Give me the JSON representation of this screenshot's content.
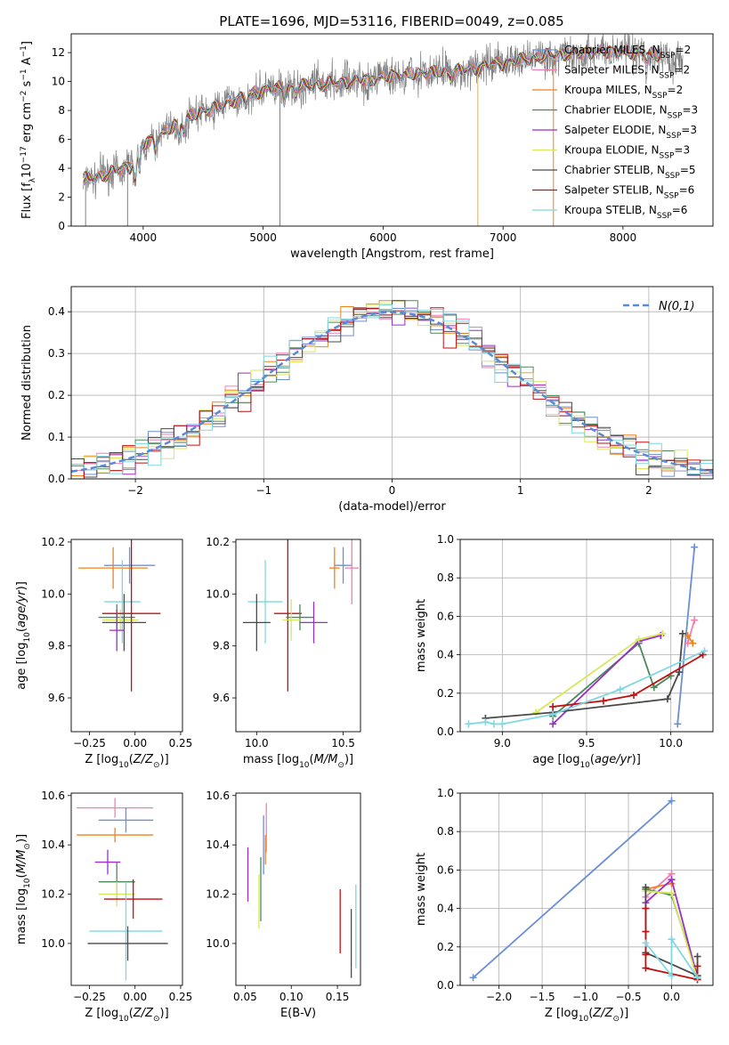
{
  "figure": {
    "title": "PLATE=1696, MJD=53116, FIBERID=0049, z=0.085",
    "colors": {
      "Chabrier MILES": "#6b8fd6",
      "Salpeter MILES": "#f27fb2",
      "Kroupa MILES": "#f0821e",
      "Chabrier ELODIE": "#4a8a5a",
      "Salpeter ELODIE": "#9a2fc8",
      "Kroupa ELODIE": "#d8e85a",
      "Chabrier STELIB": "#4a4a4a",
      "Salpeter STELIB": "#c01010",
      "Kroupa STELIB": "#7fd8e0",
      "data": "#808080",
      "normal": "#5a8ad6"
    }
  },
  "chart_data": [
    {
      "id": "spectrum",
      "type": "line",
      "xlabel": "wavelength [Angstrom, rest frame]",
      "ylabel": "Flux [f_λ 10^-17 erg cm^-2 s^-1 A^-1]",
      "xlim": [
        3400,
        8750
      ],
      "ylim": [
        0,
        13.3
      ],
      "xticks": [
        "4000",
        "5000",
        "6000",
        "7000",
        "8000"
      ],
      "yticks": [
        "0",
        "2",
        "4",
        "6",
        "8",
        "10",
        "12"
      ],
      "grid": false,
      "legend_position": "right",
      "legend": [
        {
          "name": "Chabrier MILES",
          "nssp": "2"
        },
        {
          "name": "Salpeter MILES",
          "nssp": "2"
        },
        {
          "name": "Kroupa MILES",
          "nssp": "2"
        },
        {
          "name": "Chabrier ELODIE",
          "nssp": "3"
        },
        {
          "name": "Salpeter ELODIE",
          "nssp": "3"
        },
        {
          "name": "Kroupa ELODIE",
          "nssp": "3"
        },
        {
          "name": "Chabrier STELIB",
          "nssp": "5"
        },
        {
          "name": "Salpeter STELIB",
          "nssp": "6"
        },
        {
          "name": "Kroupa STELIB",
          "nssp": "6"
        }
      ],
      "continuum": {
        "x": [
          3500,
          3700,
          3900,
          4000,
          4200,
          4400,
          4600,
          4800,
          5000,
          5200,
          5500,
          5800,
          6100,
          6400,
          6700,
          7000,
          7400,
          7800,
          8200,
          8500
        ],
        "y": [
          3.2,
          3.6,
          4.2,
          5.6,
          6.6,
          7.6,
          8.2,
          8.8,
          9.4,
          9.6,
          9.8,
          10.1,
          10.4,
          10.6,
          10.8,
          11.3,
          11.8,
          12.1,
          11.9,
          11.5
        ]
      },
      "spectrum_range": [
        3500,
        8500
      ]
    },
    {
      "id": "residuals",
      "type": "step",
      "xlabel": "(data-model)/error",
      "ylabel": "Normed distribution",
      "xlim": [
        -2.5,
        2.5
      ],
      "ylim": [
        0,
        0.46
      ],
      "xticks": [
        "−2",
        "−1",
        "0",
        "1",
        "2"
      ],
      "yticks": [
        "0.0",
        "0.1",
        "0.2",
        "0.3",
        "0.4"
      ],
      "grid": true,
      "legend_label": "N(0,1)",
      "bin_width": 0.1
    },
    {
      "id": "age-vs-z",
      "type": "errorbar",
      "xlabel": "Z [log10(Z/Z⊙)]",
      "ylabel": "age [log10(age/yr)]",
      "xlim": [
        -0.35,
        0.26
      ],
      "ylim": [
        9.47,
        10.21
      ],
      "xticks": [
        "−0.25",
        "0.00",
        "0.25"
      ],
      "yticks": [
        "9.6",
        "9.8",
        "10.0",
        "10.2"
      ],
      "points": [
        {
          "series": "Chabrier MILES",
          "x": -0.03,
          "y": 10.11,
          "xerr": 0.14,
          "yerr": 0.07
        },
        {
          "series": "Kroupa MILES",
          "x": -0.12,
          "y": 10.1,
          "xerr": 0.19,
          "yerr": 0.08
        },
        {
          "series": "Kroupa STELIB",
          "x": -0.07,
          "y": 9.97,
          "xerr": 0.1,
          "yerr": 0.16
        },
        {
          "series": "Chabrier ELODIE",
          "x": -0.1,
          "y": 9.91,
          "xerr": 0.1,
          "yerr": 0.05
        },
        {
          "series": "Kroupa ELODIE",
          "x": -0.08,
          "y": 9.9,
          "xerr": 0.1,
          "yerr": 0.04
        },
        {
          "series": "Salpeter STELIB",
          "x": -0.02,
          "y": 9.925,
          "xerr": 0.16,
          "yerr": 0.3
        },
        {
          "series": "Chabrier STELIB",
          "x": -0.06,
          "y": 9.89,
          "xerr": 0.12,
          "yerr": 0.11
        },
        {
          "series": "Salpeter ELODIE",
          "x": -0.1,
          "y": 9.86,
          "xerr": 0.04,
          "yerr": 0.08
        }
      ]
    },
    {
      "id": "age-vs-mass",
      "type": "errorbar",
      "xlabel": "mass [log10(M/M⊙)]",
      "ylabel": "",
      "xlim": [
        9.88,
        10.6
      ],
      "ylim": [
        9.47,
        10.21
      ],
      "xticks": [
        "10.0",
        "10.5"
      ],
      "yticks": [
        "9.6",
        "9.8",
        "10.0",
        "10.2"
      ],
      "points": [
        {
          "series": "Chabrier MILES",
          "x": 10.5,
          "y": 10.11,
          "xerr": 0.05,
          "yerr": 0.07
        },
        {
          "series": "Salpeter MILES",
          "x": 10.55,
          "y": 10.1,
          "xerr": 0.04,
          "yerr": 0.14
        },
        {
          "series": "Kroupa MILES",
          "x": 10.45,
          "y": 10.1,
          "xerr": 0.03,
          "yerr": 0.08
        },
        {
          "series": "Kroupa STELIB",
          "x": 10.05,
          "y": 9.97,
          "xerr": 0.1,
          "yerr": 0.16
        },
        {
          "series": "Salpeter STELIB",
          "x": 10.18,
          "y": 9.925,
          "xerr": 0.08,
          "yerr": 0.3
        },
        {
          "series": "Chabrier ELODIE",
          "x": 10.25,
          "y": 9.91,
          "xerr": 0.08,
          "yerr": 0.05
        },
        {
          "series": "Kroupa ELODIE",
          "x": 10.2,
          "y": 9.9,
          "xerr": 0.05,
          "yerr": 0.08
        },
        {
          "series": "Salpeter ELODIE",
          "x": 10.33,
          "y": 9.89,
          "xerr": 0.08,
          "yerr": 0.08
        },
        {
          "series": "Chabrier STELIB",
          "x": 10.0,
          "y": 9.89,
          "xerr": 0.08,
          "yerr": 0.11
        }
      ]
    },
    {
      "id": "weight-vs-age",
      "type": "line",
      "xlabel": "age [log10(age/yr)]",
      "ylabel": "mass weight",
      "xlim": [
        8.75,
        10.25
      ],
      "ylim": [
        0,
        1
      ],
      "xticks": [
        "9.0",
        "9.5",
        "10.0"
      ],
      "yticks": [
        "0.0",
        "0.2",
        "0.4",
        "0.6",
        "0.8",
        "1.0"
      ],
      "grid": true,
      "series": [
        {
          "name": "Chabrier MILES",
          "x": [
            10.04,
            10.14
          ],
          "y": [
            0.04,
            0.96
          ]
        },
        {
          "name": "Salpeter MILES",
          "x": [
            10.1,
            10.14
          ],
          "y": [
            0.46,
            0.58
          ]
        },
        {
          "name": "Kroupa MILES",
          "x": [
            10.1,
            10.13
          ],
          "y": [
            0.5,
            0.46
          ]
        },
        {
          "name": "Chabrier ELODIE",
          "x": [
            9.3,
            9.81,
            9.9,
            10.0
          ],
          "y": [
            0.08,
            0.46,
            0.23,
            0.29
          ]
        },
        {
          "name": "Salpeter ELODIE",
          "x": [
            9.3,
            9.81,
            9.94
          ],
          "y": [
            0.04,
            0.47,
            0.5
          ]
        },
        {
          "name": "Kroupa ELODIE",
          "x": [
            9.2,
            9.81,
            9.95
          ],
          "y": [
            0.1,
            0.48,
            0.51
          ]
        },
        {
          "name": "Chabrier STELIB",
          "x": [
            8.9,
            9.3,
            9.98,
            10.05,
            10.07
          ],
          "y": [
            0.07,
            0.1,
            0.17,
            0.31,
            0.51
          ]
        },
        {
          "name": "Salpeter STELIB",
          "x": [
            9.3,
            9.6,
            9.78,
            10.19
          ],
          "y": [
            0.13,
            0.16,
            0.19,
            0.4
          ]
        },
        {
          "name": "Kroupa STELIB",
          "x": [
            8.8,
            8.9,
            8.95,
            9.0,
            9.3,
            9.7,
            10.2
          ],
          "y": [
            0.04,
            0.05,
            0.04,
            0.04,
            0.09,
            0.22,
            0.42
          ]
        }
      ]
    },
    {
      "id": "mass-vs-z",
      "type": "errorbar",
      "xlabel": "Z [log10(Z/Z⊙)]",
      "ylabel": "mass [log10(M/M⊙)]",
      "xlim": [
        -0.35,
        0.26
      ],
      "ylim": [
        9.83,
        10.61
      ],
      "xticks": [
        "−0.25",
        "0.00",
        "0.25"
      ],
      "yticks": [
        "10.0",
        "10.2",
        "10.4",
        "10.6"
      ],
      "points": [
        {
          "series": "Salpeter MILES",
          "x": -0.11,
          "y": 10.55,
          "xerr": 0.21,
          "yerr": 0.04
        },
        {
          "series": "Chabrier MILES",
          "x": -0.05,
          "y": 10.5,
          "xerr": 0.15,
          "yerr": 0.05
        },
        {
          "series": "Kroupa MILES",
          "x": -0.11,
          "y": 10.44,
          "xerr": 0.21,
          "yerr": 0.03
        },
        {
          "series": "Salpeter ELODIE",
          "x": -0.15,
          "y": 10.33,
          "xerr": 0.07,
          "yerr": 0.05
        },
        {
          "series": "Chabrier ELODIE",
          "x": -0.1,
          "y": 10.25,
          "xerr": 0.1,
          "yerr": 0.08
        },
        {
          "series": "Kroupa ELODIE",
          "x": -0.1,
          "y": 10.2,
          "xerr": 0.1,
          "yerr": 0.05
        },
        {
          "series": "Salpeter STELIB",
          "x": -0.01,
          "y": 10.18,
          "xerr": 0.16,
          "yerr": 0.08
        },
        {
          "series": "Kroupa STELIB",
          "x": -0.05,
          "y": 10.05,
          "xerr": 0.2,
          "yerr": 0.2
        },
        {
          "series": "Chabrier STELIB",
          "x": -0.04,
          "y": 10.0,
          "xerr": 0.22,
          "yerr": 0.07
        }
      ]
    },
    {
      "id": "mass-vs-ebv",
      "type": "errorbar",
      "xlabel": "E(B-V)",
      "ylabel": "",
      "xlim": [
        0.04,
        0.175
      ],
      "ylim": [
        9.83,
        10.61
      ],
      "xticks": [
        "0.05",
        "0.10",
        "0.15"
      ],
      "yticks": [
        "10.0",
        "10.2",
        "10.4",
        "10.6"
      ],
      "points": [
        {
          "series": "Salpeter MILES",
          "x": 0.073,
          "y": 10.47,
          "xerr": 0,
          "yerr": 0.1
        },
        {
          "series": "Chabrier MILES",
          "x": 0.07,
          "y": 10.4,
          "xerr": 0,
          "yerr": 0.12
        },
        {
          "series": "Kroupa MILES",
          "x": 0.072,
          "y": 10.38,
          "xerr": 0,
          "yerr": 0.06
        },
        {
          "series": "Salpeter ELODIE",
          "x": 0.053,
          "y": 10.28,
          "xerr": 0,
          "yerr": 0.11
        },
        {
          "series": "Chabrier ELODIE",
          "x": 0.067,
          "y": 10.22,
          "xerr": 0,
          "yerr": 0.13
        },
        {
          "series": "Kroupa ELODIE",
          "x": 0.065,
          "y": 10.17,
          "xerr": 0,
          "yerr": 0.11
        },
        {
          "series": "Salpeter STELIB",
          "x": 0.153,
          "y": 10.09,
          "xerr": 0,
          "yerr": 0.13
        },
        {
          "series": "Chabrier STELIB",
          "x": 0.165,
          "y": 10.0,
          "xerr": 0,
          "yerr": 0.14
        },
        {
          "series": "Kroupa STELIB",
          "x": 0.17,
          "y": 10.07,
          "xerr": 0,
          "yerr": 0.17
        }
      ]
    },
    {
      "id": "weight-vs-z",
      "type": "line",
      "xlabel": "Z [log10(Z/Z⊙)]",
      "ylabel": "mass weight",
      "xlim": [
        -2.45,
        0.48
      ],
      "ylim": [
        0,
        1
      ],
      "xticks": [
        "−2.0",
        "−1.5",
        "−1.0",
        "−0.5",
        "0.0"
      ],
      "yticks": [
        "0.0",
        "0.2",
        "0.4",
        "0.6",
        "0.8",
        "1.0"
      ],
      "grid": true,
      "series": [
        {
          "name": "Chabrier MILES",
          "x": [
            -2.3,
            0.0
          ],
          "y": [
            0.04,
            0.96
          ]
        },
        {
          "name": "Salpeter MILES",
          "x": [
            -0.3,
            0.0
          ],
          "y": [
            0.46,
            0.58
          ]
        },
        {
          "name": "Kroupa MILES",
          "x": [
            -0.3,
            0.0
          ],
          "y": [
            0.5,
            0.53
          ]
        },
        {
          "name": "Chabrier ELODIE",
          "x": [
            -0.3,
            0.0,
            0.3
          ],
          "y": [
            0.5,
            0.47,
            0.05
          ]
        },
        {
          "name": "Salpeter ELODIE",
          "x": [
            -0.3,
            0.0,
            0.3
          ],
          "y": [
            0.43,
            0.55,
            0.04
          ]
        },
        {
          "name": "Kroupa ELODIE",
          "x": [
            -0.3,
            0.0,
            0.3
          ],
          "y": [
            0.49,
            0.48,
            0.03
          ]
        },
        {
          "name": "Chabrier STELIB",
          "x": [
            -0.3,
            -0.3,
            0.3,
            0.3
          ],
          "y": [
            0.51,
            0.17,
            0.05,
            0.15
          ]
        },
        {
          "name": "Salpeter STELIB",
          "x": [
            -0.3,
            -0.3,
            -0.3,
            -0.3,
            0.3,
            0.3
          ],
          "y": [
            0.4,
            0.28,
            0.16,
            0.09,
            0.03,
            0.1
          ]
        },
        {
          "name": "Kroupa STELIB",
          "x": [
            -0.3,
            0.0,
            0.0,
            0.3
          ],
          "y": [
            0.22,
            0.05,
            0.24,
            0.04
          ]
        }
      ]
    }
  ]
}
